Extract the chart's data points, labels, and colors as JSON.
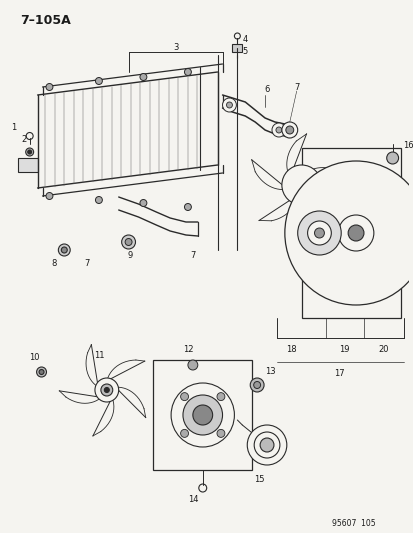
{
  "title": "7–105A",
  "bg_color": "#f5f4f0",
  "line_color": "#2a2a2a",
  "footer_text": "95607  105",
  "fig_w": 4.14,
  "fig_h": 5.33,
  "dpi": 100
}
